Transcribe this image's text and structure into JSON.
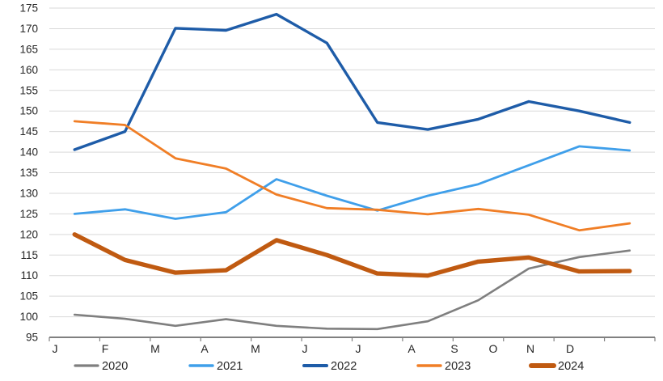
{
  "chart_data": {
    "type": "line",
    "title": "",
    "x_categories": [
      "J",
      "F",
      "M",
      "A",
      "M",
      "J",
      "J",
      "A",
      "S",
      "O",
      "N",
      "D"
    ],
    "y_ticks": [
      95,
      100,
      105,
      110,
      115,
      120,
      125,
      130,
      135,
      140,
      145,
      150,
      155,
      160,
      165,
      170,
      175
    ],
    "ylim": [
      95,
      175
    ],
    "grid": true,
    "legend_position": "bottom",
    "background": "#FFFFFF",
    "gridline_color": "#D9D9D9",
    "axis_color": "#808080",
    "label_color": "#262626",
    "series": [
      {
        "name": "2020",
        "color": "#7F7F7F",
        "line_width": 2.6,
        "values": [
          100.5,
          99.5,
          97.8,
          99.4,
          97.8,
          97.1,
          97.0,
          98.9,
          104.0,
          111.7,
          114.5,
          116.1
        ]
      },
      {
        "name": "2021",
        "color": "#3F9FEA",
        "line_width": 2.8,
        "values": [
          125.0,
          126.1,
          123.8,
          125.4,
          133.4,
          129.4,
          125.8,
          129.4,
          132.2,
          136.8,
          141.4,
          140.4
        ]
      },
      {
        "name": "2022",
        "color": "#1E5CA8",
        "line_width": 3.4,
        "values": [
          140.6,
          145.0,
          170.1,
          169.6,
          173.5,
          166.5,
          147.2,
          145.5,
          148.0,
          152.3,
          150.0,
          147.2
        ]
      },
      {
        "name": "2023",
        "color": "#F07E26",
        "line_width": 2.8,
        "values": [
          147.5,
          146.6,
          138.5,
          136.0,
          129.7,
          126.4,
          126.0,
          124.9,
          126.2,
          124.8,
          121.0,
          122.7
        ]
      },
      {
        "name": "2024",
        "color": "#C05A11",
        "line_width": 5.4,
        "values": [
          120.0,
          113.8,
          110.7,
          111.3,
          118.6,
          115.0,
          110.5,
          110.0,
          113.4,
          114.4,
          111.0,
          111.1
        ]
      }
    ]
  }
}
